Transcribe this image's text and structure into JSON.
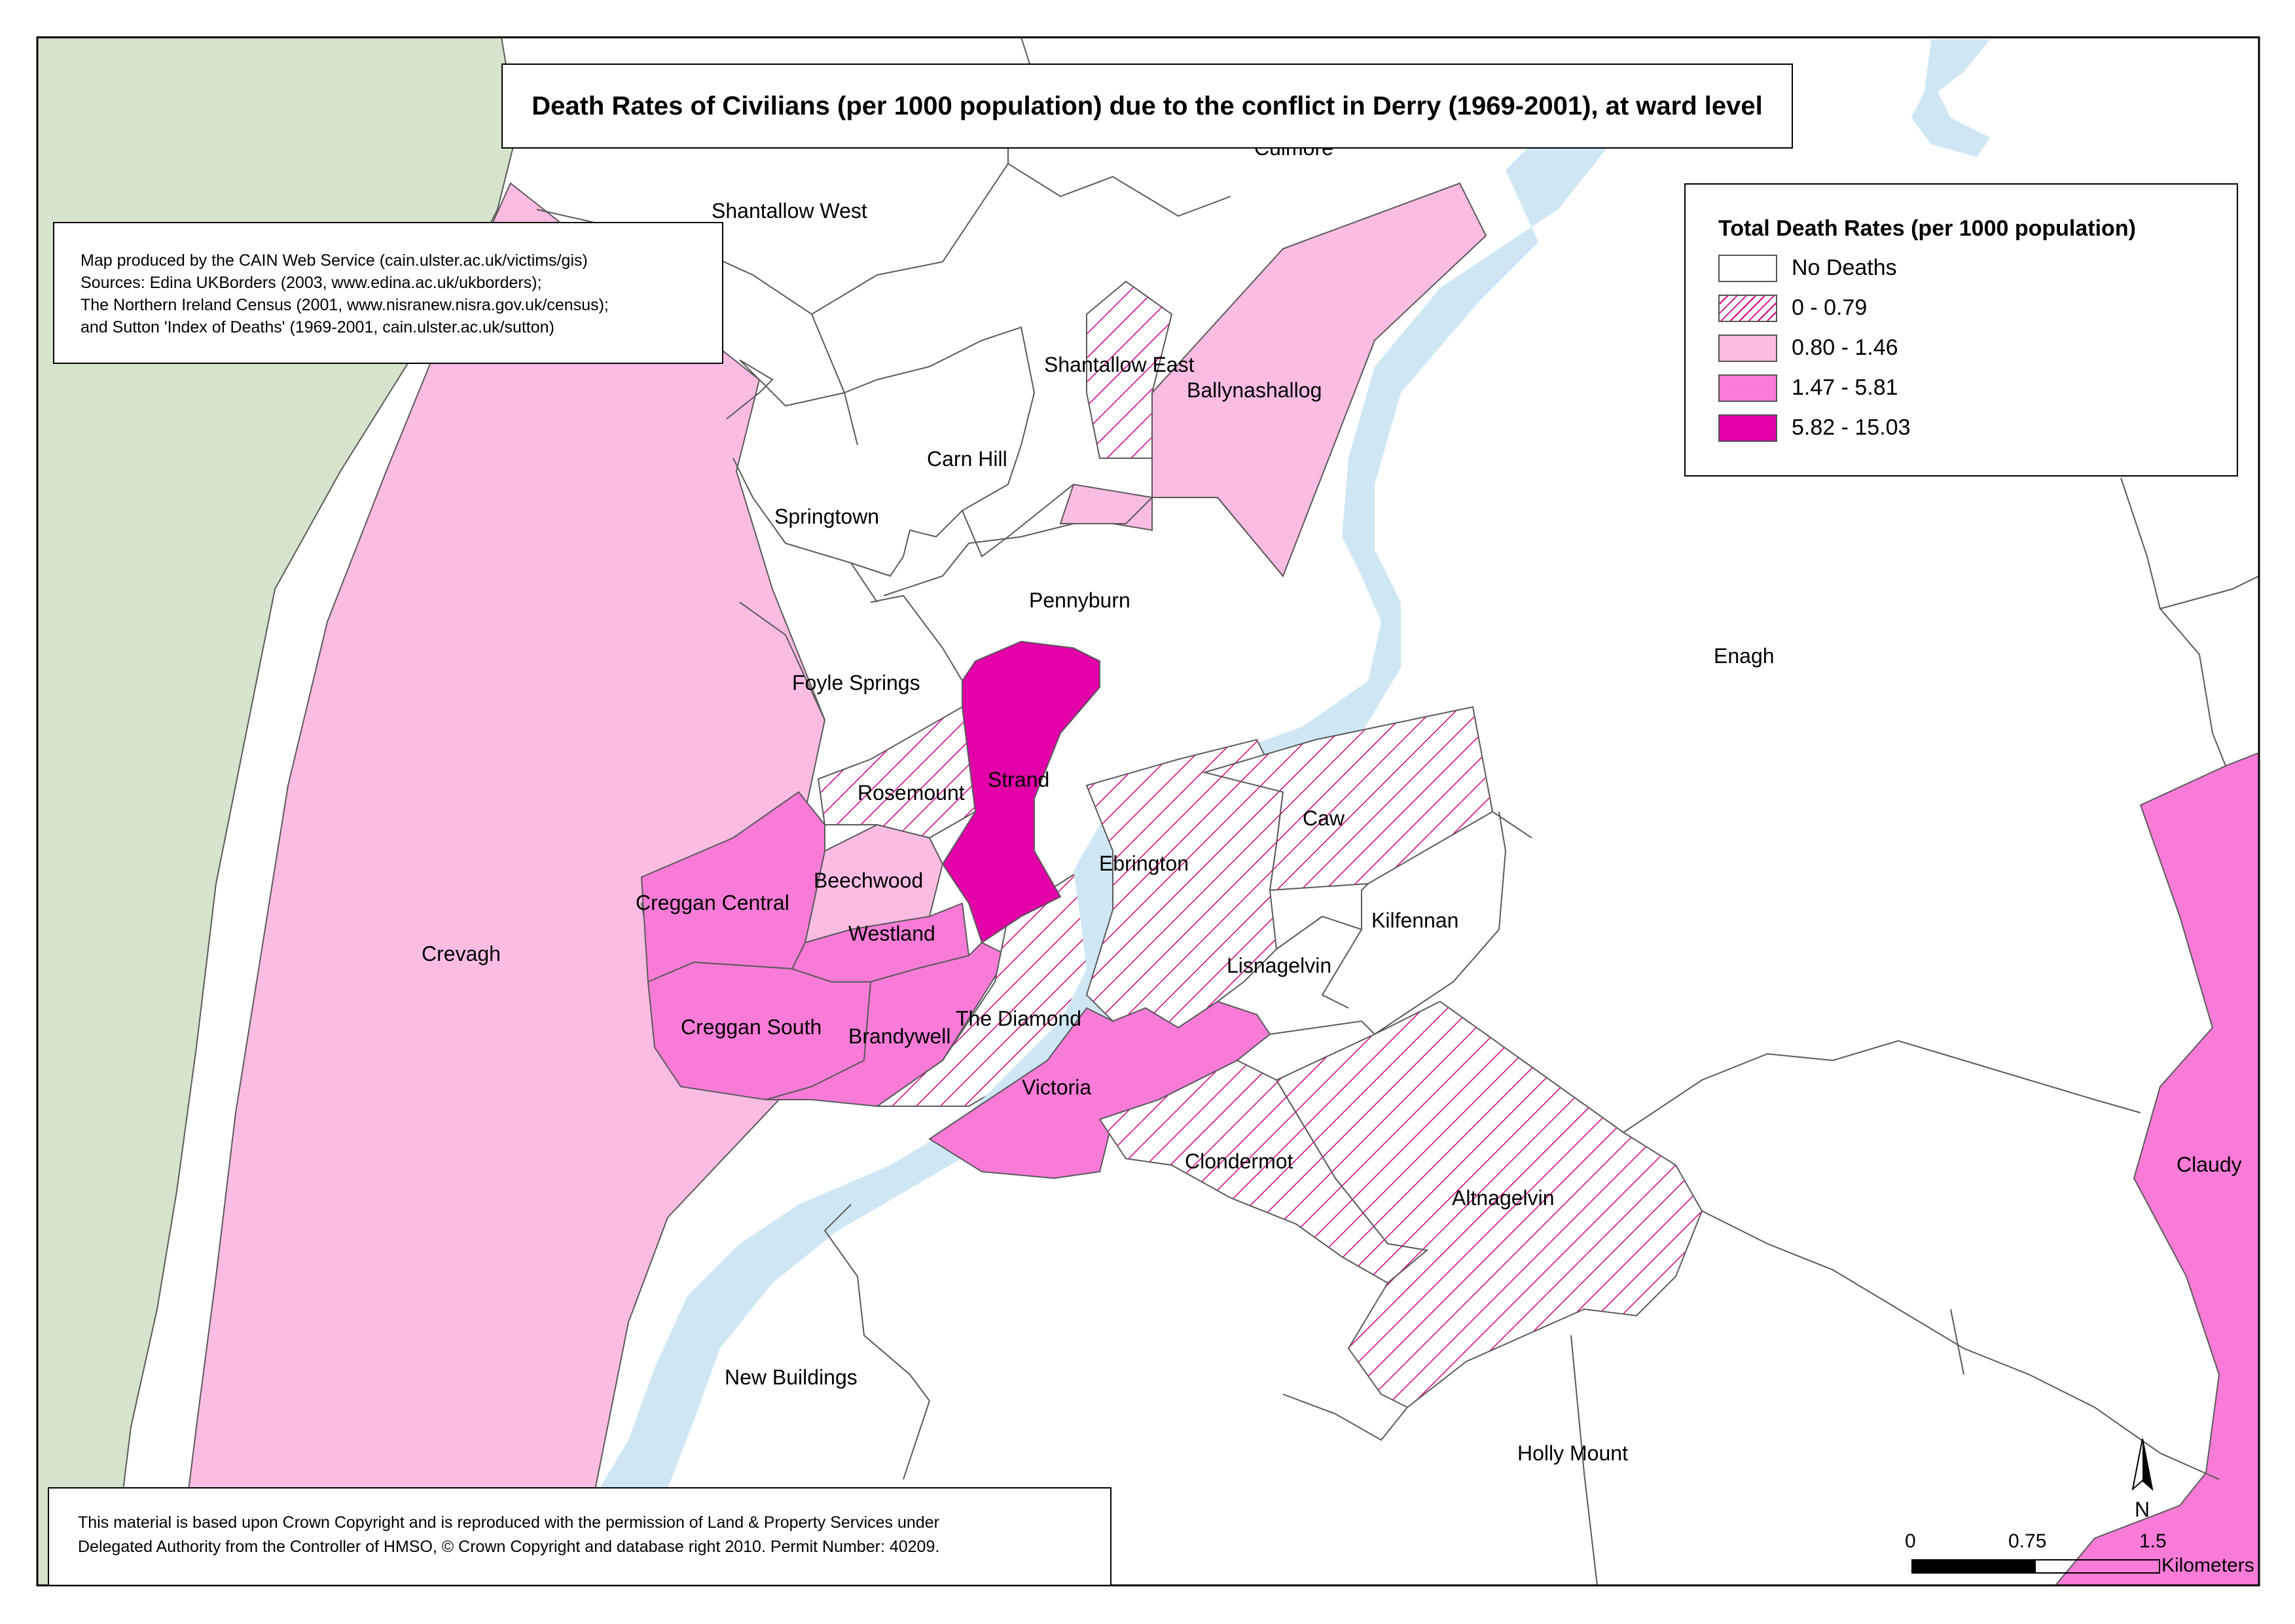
{
  "title": "Death Rates of Civilians (per 1000 population) due to the conflict in Derry (1969-2001), at ward level",
  "credits": [
    "Map produced by the CAIN Web Service (cain.ulster.ac.uk/victims/gis)",
    "Sources: Edina UKBorders (2003, www.edina.ac.uk/ukborders);",
    "The Northern Ireland Census (2001, www.nisranew.nisra.gov.uk/census);",
    "and Sutton 'Index of Deaths' (1969-2001, cain.ulster.ac.uk/sutton)"
  ],
  "legend": {
    "title": "Total Death Rates (per 1000 population)",
    "classes": [
      {
        "label": "No Deaths",
        "color": "#ffffff",
        "pattern": "solid"
      },
      {
        "label": "0 - 0.79",
        "color": "#d6007f",
        "pattern": "hatch"
      },
      {
        "label": "0.80 - 1.46",
        "color": "#fbbce3",
        "pattern": "solid"
      },
      {
        "label": "1.47 - 5.81",
        "color": "#f97bd8",
        "pattern": "solid"
      },
      {
        "label": "5.82 - 15.03",
        "color": "#e300a8",
        "pattern": "solid"
      }
    ]
  },
  "copyright": [
    "This material is based upon Crown Copyright and is reproduced with the permission of Land & Property Services under",
    "Delegated Authority from the Controller of HMSO, © Crown Copyright and database right 2010. Permit Number: 40209."
  ],
  "colors": {
    "river": "#cfe7f4",
    "land_west": "#d6e4cc",
    "boundary": "#5a5a5a",
    "frame": "#000000"
  },
  "wards": {
    "culmore": "Culmore",
    "shantallow_west": "Shantallow West",
    "shantallow_east": "Shantallow East",
    "ballynashallog": "Ballynashallog",
    "carn_hill": "Carn Hill",
    "springtown": "Springtown",
    "pennyburn": "Pennyburn",
    "foyle_springs": "Foyle Springs",
    "enagh": "Enagh",
    "rosemount": "Rosemount",
    "strand": "Strand",
    "caw": "Caw",
    "ebrington": "Ebrington",
    "beechwood": "Beechwood",
    "creggan_central": "Creggan Central",
    "kilfennan": "Kilfennan",
    "westland": "Westland",
    "crevagh": "Crevagh",
    "lisnagelvin": "Lisnagelvin",
    "the_diamond": "The Diamond",
    "creggan_south": "Creggan South",
    "brandywell": "Brandywell",
    "victoria": "Victoria",
    "claudy": "Claudy",
    "clondermot": "Clondermot",
    "altnagelvin": "Altnagelvin",
    "new_buildings": "New Buildings",
    "holly_mount": "Holly Mount"
  },
  "north_arrow": "N",
  "scale": {
    "ticks": [
      "0",
      "0.75",
      "1.5"
    ],
    "unit": "Kilometers"
  }
}
